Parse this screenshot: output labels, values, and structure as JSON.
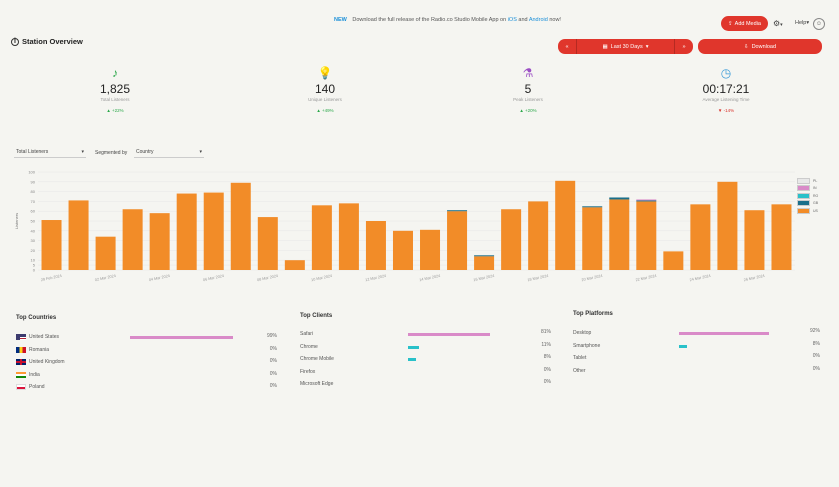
{
  "header": {
    "announce_badge": "NEW",
    "announce_text": "Download the full release of the Radio.co Studio Mobile App on",
    "announce_link_ios": "iOS",
    "announce_and": "and",
    "announce_link_android": "Android",
    "announce_end": "now!",
    "add_media_label": "Add Media",
    "help_label": "Help",
    "help_chevron": "▾",
    "gear_chevron": "▾"
  },
  "page": {
    "title": "Station Overview",
    "date_range_label": "Last 30 Days",
    "download_label": "Download"
  },
  "stats": [
    {
      "icon": "headphones-icon",
      "glyph": "♪",
      "color": "#2ba84a",
      "value": "1,825",
      "label": "Total Listeners",
      "arrow": "▲",
      "change": "+22%",
      "trend": "up"
    },
    {
      "icon": "bulb-icon",
      "glyph": "💡",
      "color": "#e8d44d",
      "value": "140",
      "label": "Unique Listeners",
      "arrow": "▲",
      "change": "+49%",
      "trend": "up"
    },
    {
      "icon": "flask-icon",
      "glyph": "⚗",
      "color": "#9b4fc4",
      "value": "5",
      "label": "Peak Listeners",
      "arrow": "▲",
      "change": "+20%",
      "trend": "up"
    },
    {
      "icon": "clock-icon",
      "glyph": "◷",
      "color": "#3a9bd8",
      "value": "00:17:21",
      "label": "Average Listening Time",
      "arrow": "▼",
      "change": "-14%",
      "trend": "down"
    }
  ],
  "controls": {
    "metric_value": "Total Listeners",
    "segmented_label": "Segmented by",
    "segment_value": "Country"
  },
  "chart_data": {
    "type": "bar",
    "ylabel": "Listeners",
    "ylim": [
      0,
      100
    ],
    "yticks": [
      0,
      5,
      10,
      20,
      30,
      40,
      50,
      60,
      70,
      80,
      90,
      100
    ],
    "x_labels": [
      "29 Feb 2024",
      "02 Mar 2024",
      "04 Mar 2024",
      "06 Mar 2024",
      "08 Mar 2024",
      "10 Mar 2024",
      "12 Mar 2024",
      "14 Mar 2024",
      "16 Mar 2024",
      "18 Mar 2024",
      "20 Mar 2024",
      "22 Mar 2024",
      "24 Mar 2024",
      "26 Mar 2024",
      "28 Mar 2024"
    ],
    "legend": [
      "PL",
      "IN",
      "RO",
      "GB",
      "US"
    ],
    "colors": {
      "PL": "#e8e8e8",
      "IN": "#d98ac8",
      "RO": "#29c1c9",
      "GB": "#1a6f8a",
      "US": "#f28c28"
    },
    "series": [
      {
        "name": "US",
        "values": [
          51,
          71,
          34,
          62,
          58,
          78,
          79,
          89,
          54,
          10,
          66,
          68,
          50,
          40,
          41,
          60,
          14,
          62,
          70,
          91,
          64,
          72,
          70,
          19,
          67,
          90,
          61,
          67
        ]
      },
      {
        "name": "GB",
        "values": [
          0,
          0,
          0,
          0,
          0,
          0,
          0,
          0,
          0,
          0,
          0,
          0,
          0,
          0,
          0,
          1,
          1,
          0,
          0,
          0,
          1,
          2,
          1,
          0,
          0,
          0,
          0,
          0
        ]
      },
      {
        "name": "RO",
        "values": [
          0,
          0,
          0,
          0,
          0,
          0,
          0,
          0,
          0,
          0,
          0,
          0,
          0,
          0,
          0,
          0,
          0,
          0,
          0,
          0,
          0,
          0,
          0,
          0,
          0,
          0,
          0,
          0
        ]
      },
      {
        "name": "IN",
        "values": [
          0,
          0,
          0,
          0,
          0,
          0,
          0,
          0,
          0,
          0,
          0,
          0,
          0,
          0,
          0,
          0,
          0,
          0,
          0,
          0,
          0,
          0,
          1,
          0,
          0,
          0,
          0,
          0
        ]
      },
      {
        "name": "PL",
        "values": [
          0,
          0,
          0,
          0,
          0,
          0,
          0,
          0,
          0,
          0,
          0,
          0,
          0,
          0,
          0,
          0,
          0,
          0,
          0,
          0,
          0,
          0,
          0,
          0,
          0,
          0,
          0,
          0
        ]
      }
    ]
  },
  "top_countries": {
    "title": "Top Countries",
    "items": [
      {
        "name": "United States",
        "flag": "us",
        "pct": "99%",
        "bar": 0.99
      },
      {
        "name": "Romania",
        "flag": "ro",
        "pct": "0%",
        "bar": 0
      },
      {
        "name": "United Kingdom",
        "flag": "gb",
        "pct": "0%",
        "bar": 0
      },
      {
        "name": "India",
        "flag": "in",
        "pct": "0%",
        "bar": 0
      },
      {
        "name": "Poland",
        "flag": "pl",
        "pct": "0%",
        "bar": 0
      }
    ]
  },
  "top_clients": {
    "title": "Top Clients",
    "items": [
      {
        "name": "Safari",
        "pct": "81%",
        "bar": 0.81,
        "color": "#d98ac8"
      },
      {
        "name": "Chrome",
        "pct": "11%",
        "bar": 0.11,
        "color": "#29c1c9"
      },
      {
        "name": "Chrome Mobile",
        "pct": "8%",
        "bar": 0.08,
        "color": "#29c1c9"
      },
      {
        "name": "Firefox",
        "pct": "0%",
        "bar": 0,
        "color": "#29c1c9"
      },
      {
        "name": "Microsoft Edge",
        "pct": "0%",
        "bar": 0,
        "color": "#29c1c9"
      }
    ]
  },
  "top_platforms": {
    "title": "Top Platforms",
    "items": [
      {
        "name": "Desktop",
        "pct": "92%",
        "bar": 0.92,
        "color": "#d98ac8"
      },
      {
        "name": "Smartphone",
        "pct": "8%",
        "bar": 0.08,
        "color": "#29c1c9"
      },
      {
        "name": "Tablet",
        "pct": "0%",
        "bar": 0,
        "color": "#29c1c9"
      },
      {
        "name": "Other",
        "pct": "0%",
        "bar": 0,
        "color": "#29c1c9"
      }
    ]
  }
}
